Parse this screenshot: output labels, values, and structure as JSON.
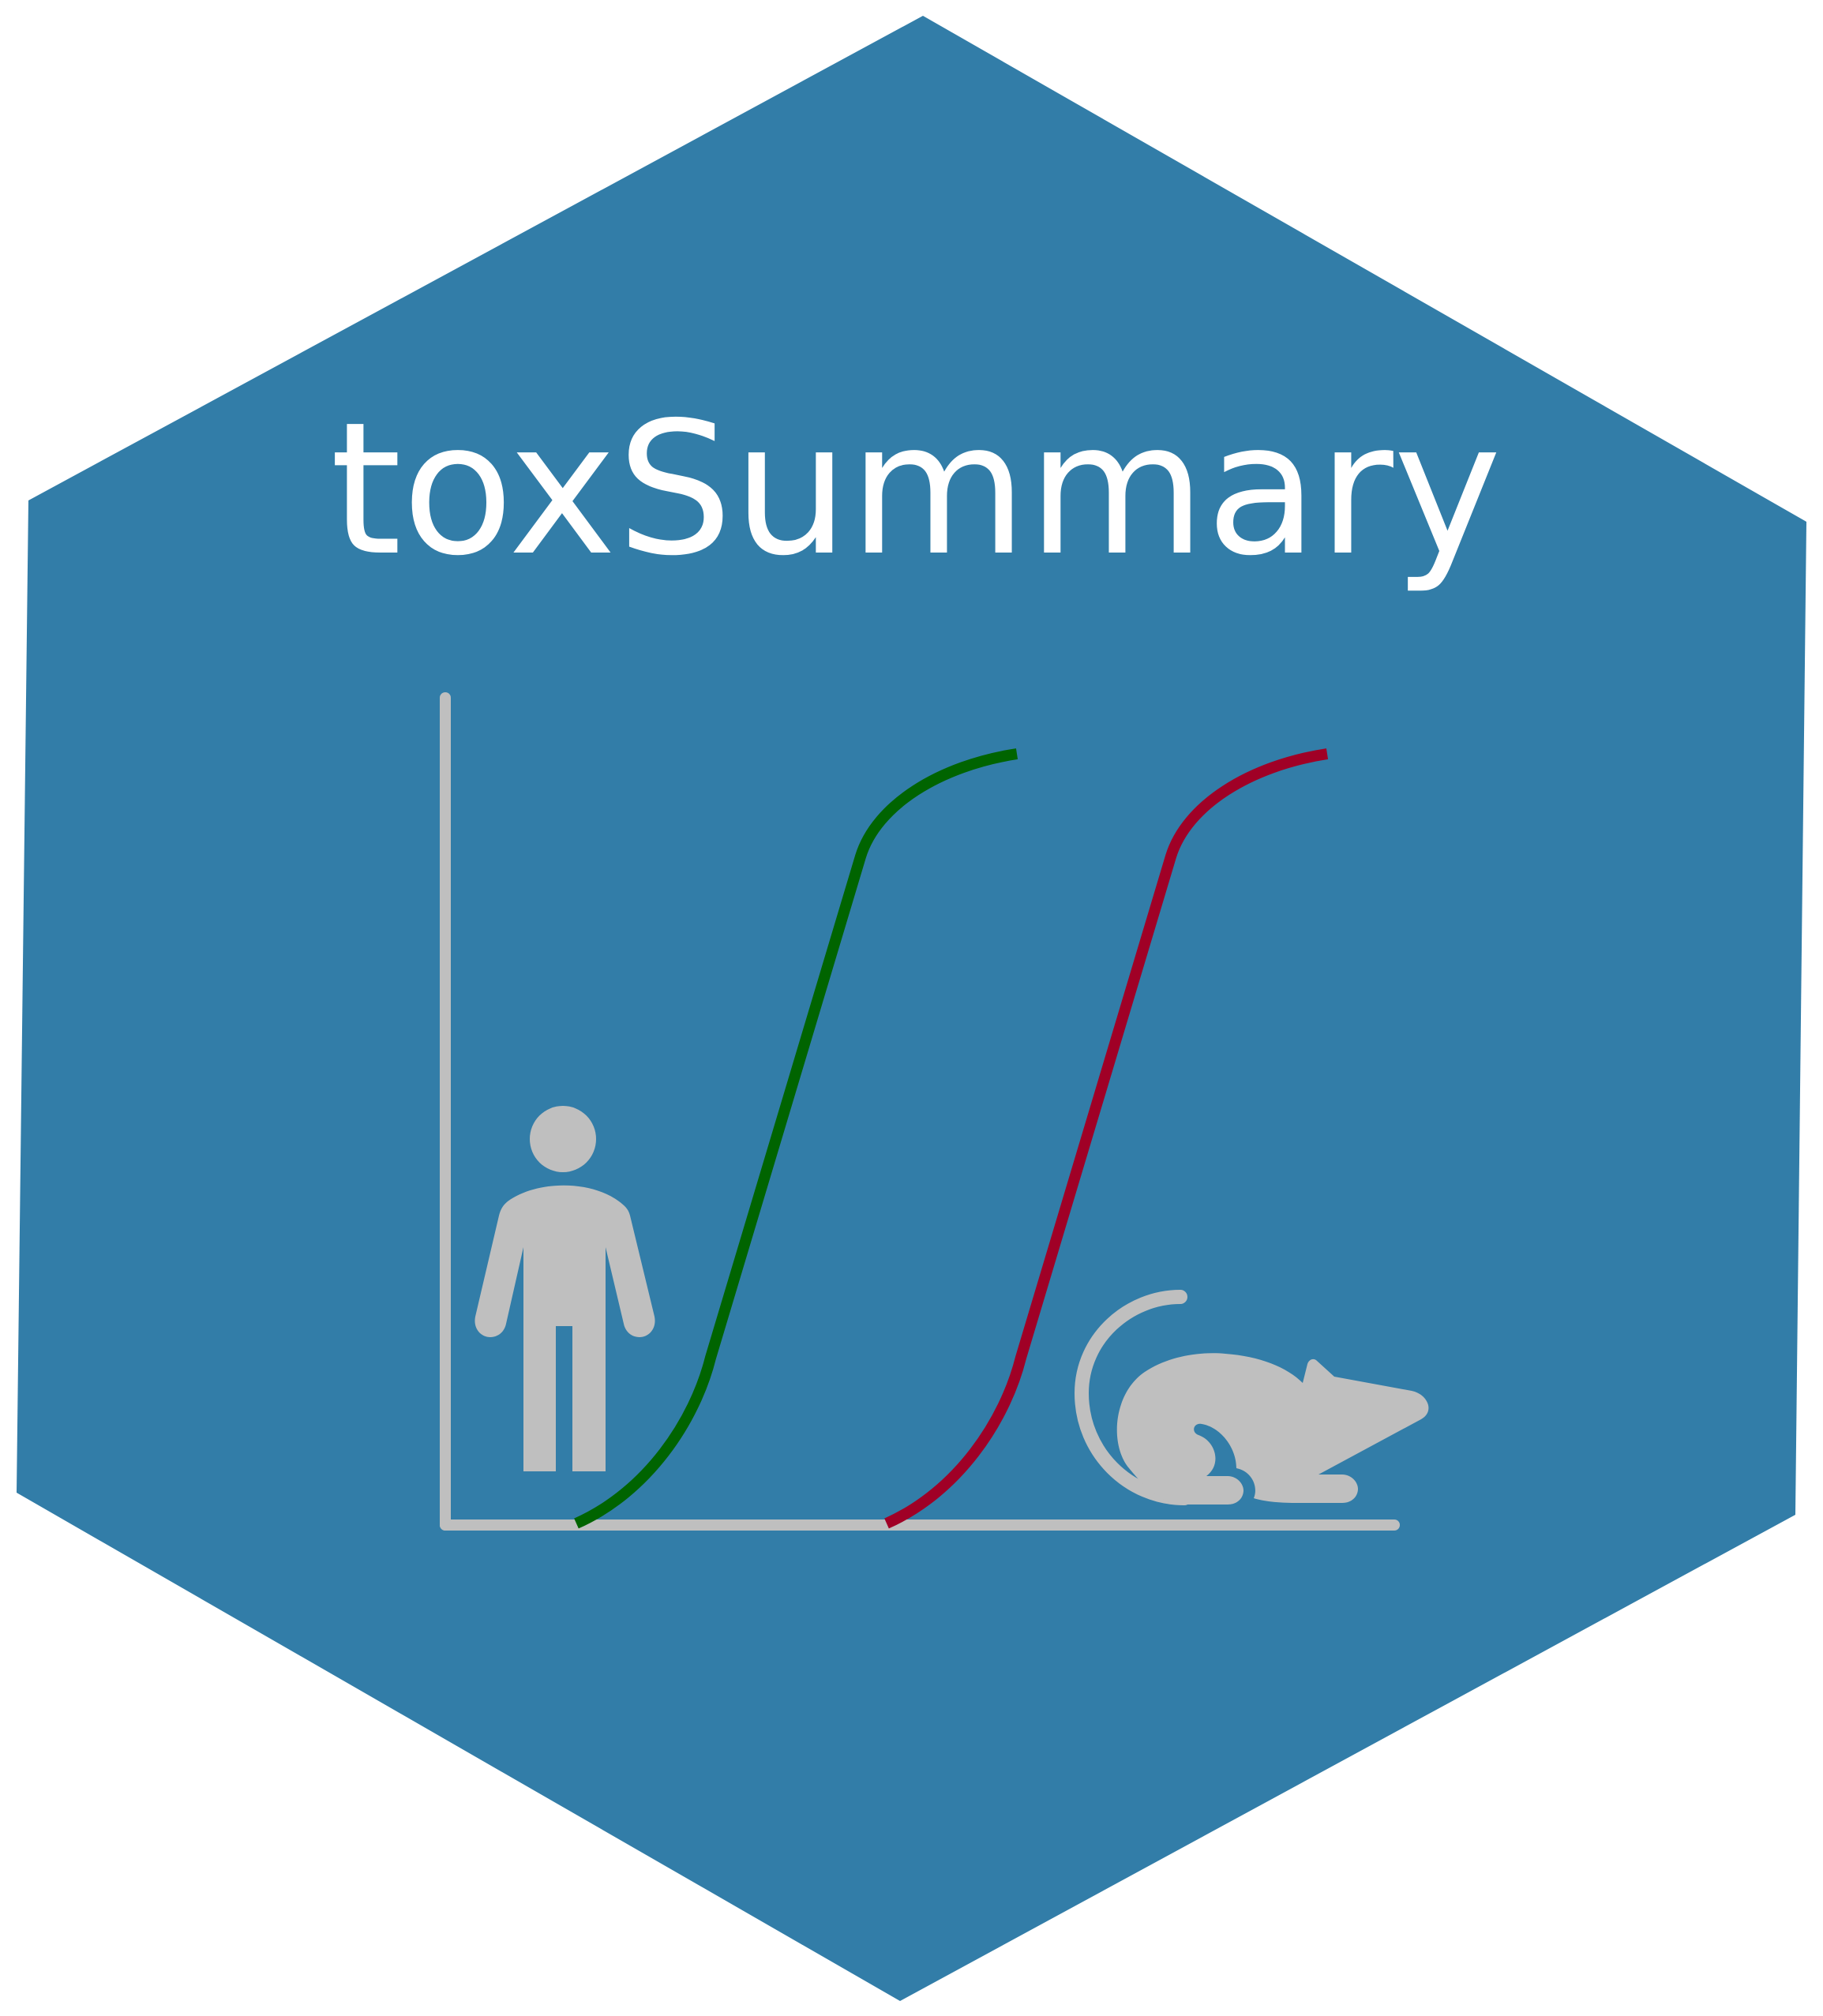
{
  "title": "toxSummary",
  "colors": {
    "hexagon_fill": "#327DA8",
    "axis": "#BFBFBF",
    "human_curve": "#006400",
    "animal_curve": "#A00026",
    "icons": "#BFBFBF",
    "title_text": "#FFFFFF",
    "background": "#FFFFFF"
  },
  "icons": {
    "left": "person-icon",
    "right": "rat-icon"
  },
  "curves": [
    {
      "series": "human",
      "color_key": "human_curve"
    },
    {
      "series": "animal",
      "color_key": "animal_curve"
    }
  ]
}
